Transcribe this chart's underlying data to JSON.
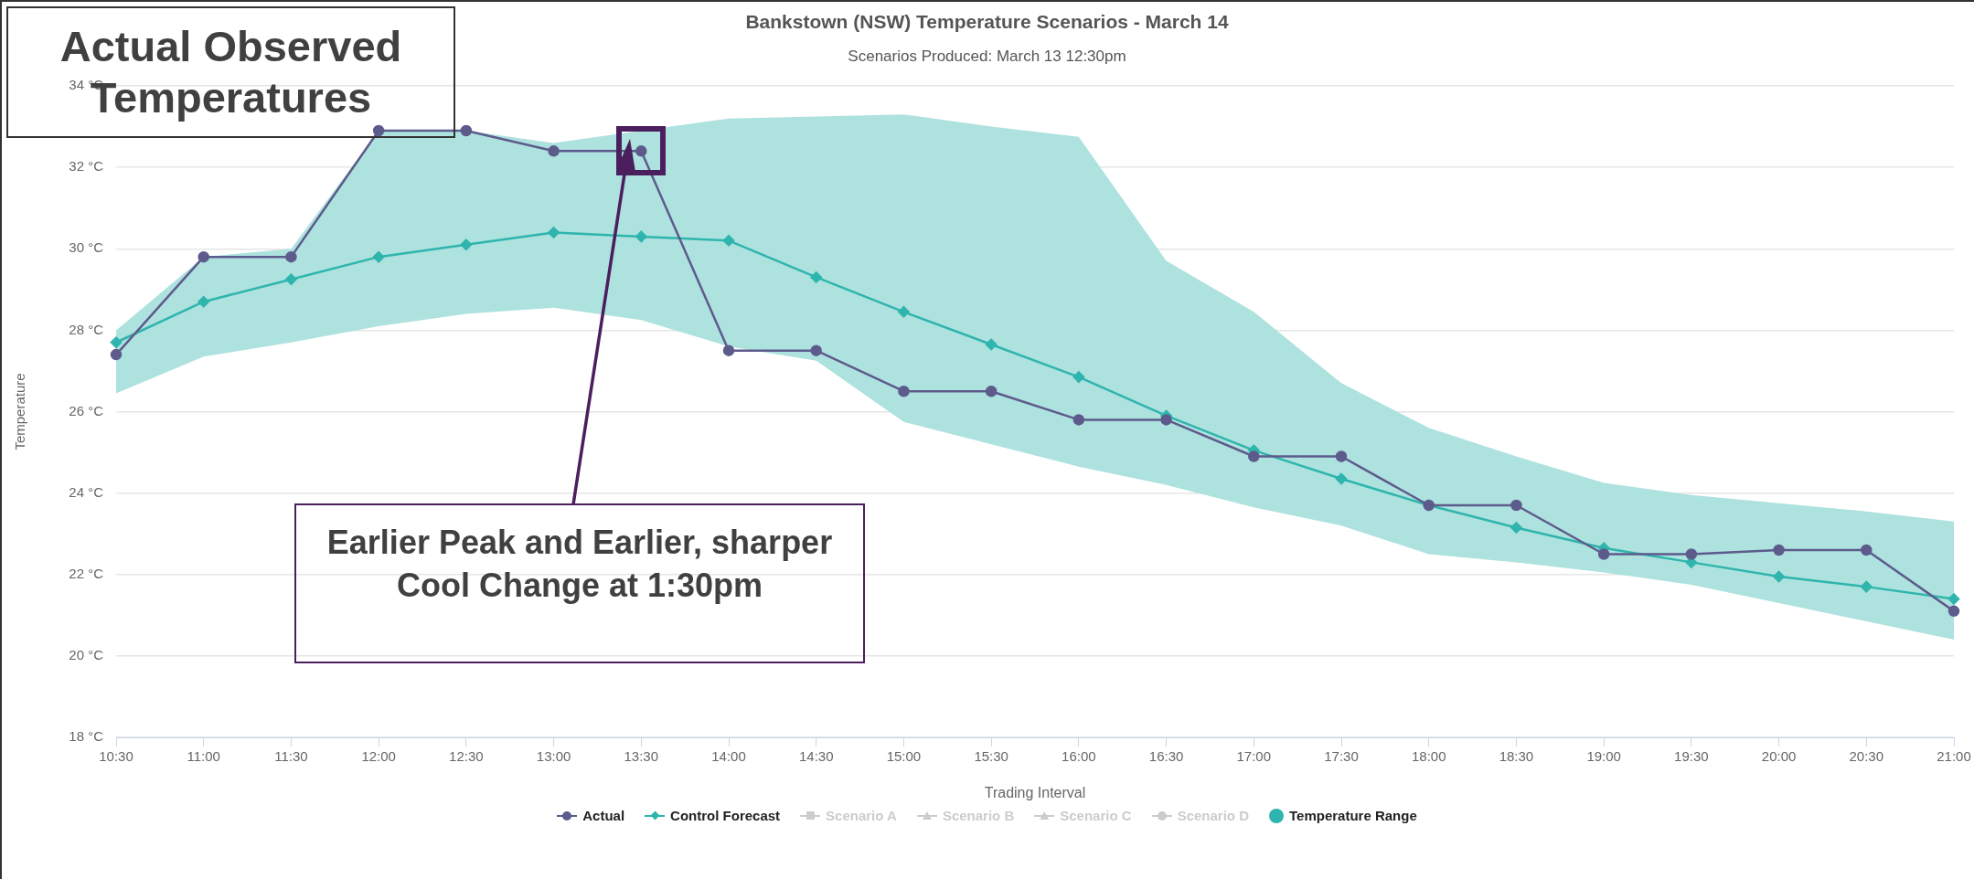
{
  "chart_data": {
    "type": "line",
    "title": "Bankstown (NSW) Temperature Scenarios - March 14",
    "subtitle": "Scenarios Produced: March 13 12:30pm",
    "xlabel": "Trading Interval",
    "ylabel": "Temperature",
    "categories": [
      "10:30",
      "11:00",
      "11:30",
      "12:00",
      "12:30",
      "13:00",
      "13:30",
      "14:00",
      "14:30",
      "15:00",
      "15:30",
      "16:00",
      "16:30",
      "17:00",
      "17:30",
      "18:00",
      "18:30",
      "19:00",
      "19:30",
      "20:00",
      "20:30",
      "21:00"
    ],
    "series": [
      {
        "name": "Actual",
        "color": "#5d5b8c",
        "marker": "circle",
        "values": [
          27.4,
          29.8,
          29.8,
          32.9,
          32.9,
          32.4,
          32.4,
          27.5,
          27.5,
          26.5,
          26.5,
          25.8,
          25.8,
          24.9,
          24.9,
          23.7,
          23.7,
          22.5,
          22.5,
          22.6,
          22.6,
          21.1
        ]
      },
      {
        "name": "Control Forecast",
        "color": "#2fb5ad",
        "marker": "diamond",
        "values": [
          27.7,
          28.7,
          29.25,
          29.8,
          30.1,
          30.4,
          30.3,
          30.2,
          29.3,
          28.45,
          27.65,
          26.85,
          25.9,
          25.05,
          24.35,
          23.7,
          23.15,
          22.65,
          22.3,
          21.95,
          21.7,
          21.4
        ],
        "lower": [
          26.45,
          27.35,
          27.7,
          28.1,
          28.4,
          28.55,
          28.25,
          27.6,
          27.25,
          25.75,
          25.2,
          24.65,
          24.2,
          23.65,
          23.2,
          22.5,
          22.3,
          22.05,
          21.75,
          21.3,
          20.85,
          20.4
        ],
        "upper": [
          28.0,
          29.8,
          30.0,
          32.9,
          32.9,
          32.6,
          32.9,
          33.2,
          33.25,
          33.3,
          33.0,
          32.75,
          29.7,
          28.45,
          26.7,
          25.6,
          24.9,
          24.25,
          23.95,
          23.75,
          23.55,
          23.3
        ]
      },
      {
        "name": "Scenario A",
        "color": "#cccccc",
        "marker": "square",
        "values": [
          null,
          null,
          null,
          null,
          null,
          null,
          null,
          null,
          null,
          null,
          null,
          null,
          null,
          null,
          null,
          null,
          null,
          null,
          null,
          null,
          null,
          null
        ]
      },
      {
        "name": "Scenario B",
        "color": "#cccccc",
        "marker": "triangle",
        "values": [
          null,
          null,
          null,
          null,
          null,
          null,
          null,
          null,
          null,
          null,
          null,
          null,
          null,
          null,
          null,
          null,
          null,
          null,
          null,
          null,
          null,
          null
        ]
      },
      {
        "name": "Scenario C",
        "color": "#cccccc",
        "marker": "triangle",
        "values": [
          null,
          null,
          null,
          null,
          null,
          null,
          null,
          null,
          null,
          null,
          null,
          null,
          null,
          null,
          null,
          null,
          null,
          null,
          null,
          null,
          null,
          null
        ]
      },
      {
        "name": "Scenario D",
        "color": "#cccccc",
        "marker": "circle",
        "values": [
          null,
          null,
          null,
          null,
          null,
          null,
          null,
          null,
          null,
          null,
          null,
          null,
          null,
          null,
          null,
          null,
          null,
          null,
          null,
          null,
          null,
          null
        ]
      }
    ],
    "ylim": [
      18,
      34
    ],
    "yticks": [
      {
        "value": 18,
        "label": "18 °C"
      },
      {
        "value": 20,
        "label": "20 °C"
      },
      {
        "value": 22,
        "label": "22 °C"
      },
      {
        "value": 24,
        "label": "24 °C"
      },
      {
        "value": 26,
        "label": "26 °C"
      },
      {
        "value": 28,
        "label": "28 °C"
      },
      {
        "value": 30,
        "label": "30 °C"
      },
      {
        "value": 32,
        "label": "32 °C"
      },
      {
        "value": 34,
        "label": "34 °C"
      }
    ],
    "grid": "y",
    "legend": "bottom",
    "annotations": [
      "Actual Observed Temperatures",
      "Earlier Peak and Earlier, sharper Cool Change at 1:30pm",
      "Temperature Range"
    ]
  }
}
